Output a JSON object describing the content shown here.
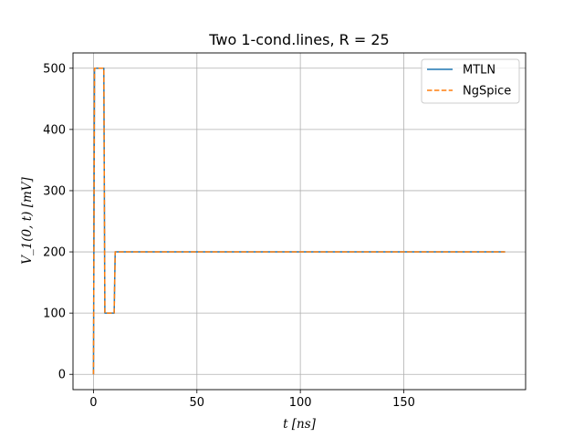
{
  "chart_data": {
    "type": "line",
    "title": "Two 1-cond.lines, R = 25",
    "xlabel": "t [ns]",
    "ylabel": "V_1(0, t) [mV]",
    "xlim": [
      -9.9,
      208.9
    ],
    "ylim": [
      -25,
      525
    ],
    "xticks": [
      0,
      50,
      100,
      150
    ],
    "yticks": [
      0,
      100,
      200,
      300,
      400,
      500
    ],
    "grid": true,
    "legend_position": "top-right",
    "series": [
      {
        "name": "MTLN",
        "color": "#1f77b4",
        "style": "solid",
        "x": [
          0,
          0.5,
          5,
          5.5,
          10,
          10.5,
          199
        ],
        "y": [
          0,
          500,
          500,
          100,
          100,
          200,
          200
        ]
      },
      {
        "name": "NgSpice",
        "color": "#ff7f0e",
        "style": "dashed",
        "x": [
          0,
          0.5,
          5,
          5.5,
          10,
          10.5,
          199
        ],
        "y": [
          0,
          500,
          500,
          100,
          100,
          200,
          200
        ]
      }
    ]
  }
}
